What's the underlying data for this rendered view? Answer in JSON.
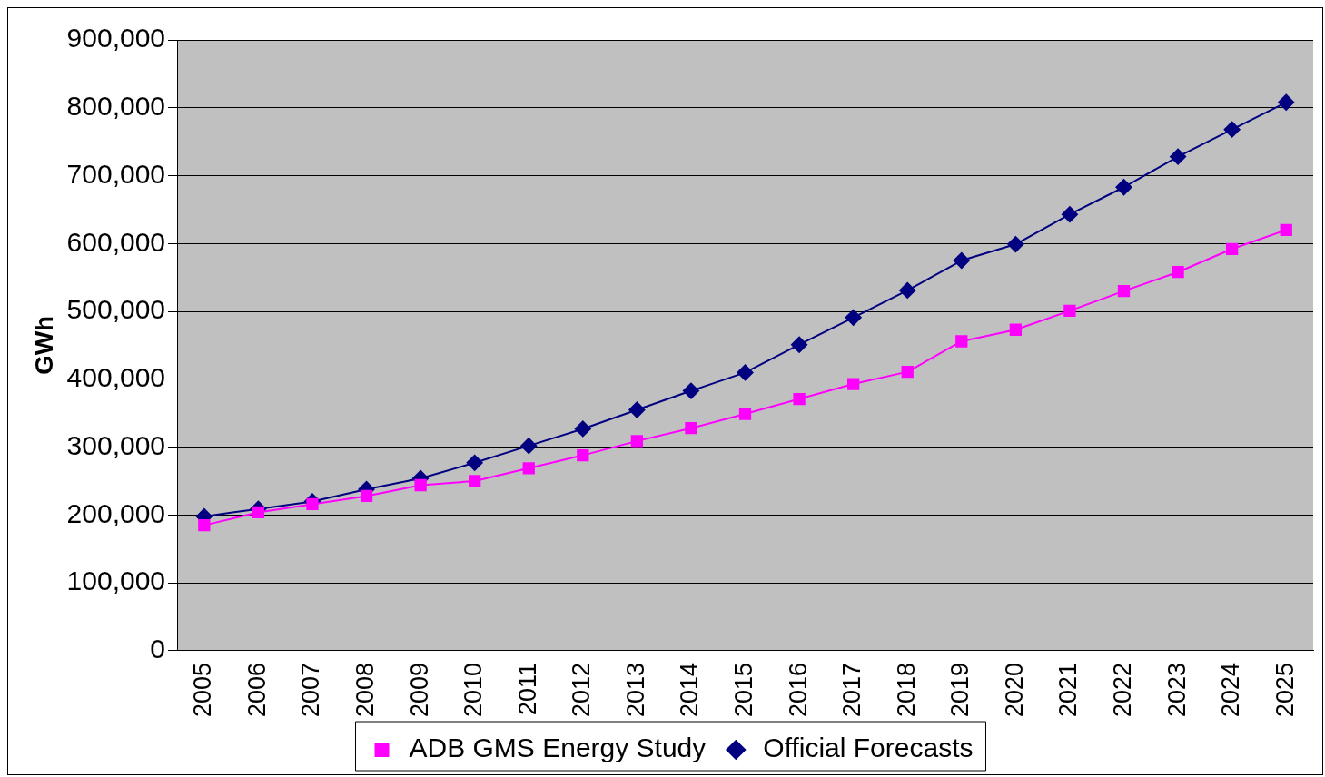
{
  "chart_data": {
    "type": "line",
    "ylabel": "GWh",
    "categories": [
      "2005",
      "2006",
      "2007",
      "2008",
      "2009",
      "2010",
      "2011",
      "2012",
      "2013",
      "2014",
      "2015",
      "2016",
      "2017",
      "2018",
      "2019",
      "2020",
      "2021",
      "2022",
      "2023",
      "2024",
      "2025"
    ],
    "series": [
      {
        "name": "Official Forecasts",
        "color": "#000080",
        "marker": "diamond",
        "values": [
          198000,
          209000,
          220000,
          238000,
          254000,
          277000,
          302000,
          327000,
          355000,
          383000,
          410000,
          451000,
          491000,
          531000,
          575000,
          599000,
          643000,
          683000,
          728000,
          768000,
          808000
        ]
      },
      {
        "name": "ADB GMS Energy Study",
        "color": "#ff00ff",
        "marker": "square",
        "values": [
          185000,
          204000,
          216000,
          228000,
          244000,
          250000,
          269000,
          288000,
          309000,
          328000,
          349000,
          371000,
          393000,
          411000,
          456000,
          473000,
          501000,
          530000,
          558000,
          592000,
          620000
        ]
      }
    ],
    "ylim": [
      0,
      900000
    ],
    "yticks": [
      0,
      {
        "value": 100000,
        "label": "100,000"
      },
      {
        "value": 200000,
        "label": "200,000"
      },
      {
        "value": 300000,
        "label": "300,000"
      },
      {
        "value": 400000,
        "label": "400,000"
      },
      {
        "value": 500000,
        "label": "500,000"
      },
      {
        "value": 600000,
        "label": "600,000"
      },
      {
        "value": 700000,
        "label": "700,000"
      },
      {
        "value": 800000,
        "label": "800,000"
      },
      {
        "value": 900000,
        "label": "900,000"
      }
    ],
    "grid": "y",
    "legend": "bottom",
    "line_style": "solid"
  }
}
